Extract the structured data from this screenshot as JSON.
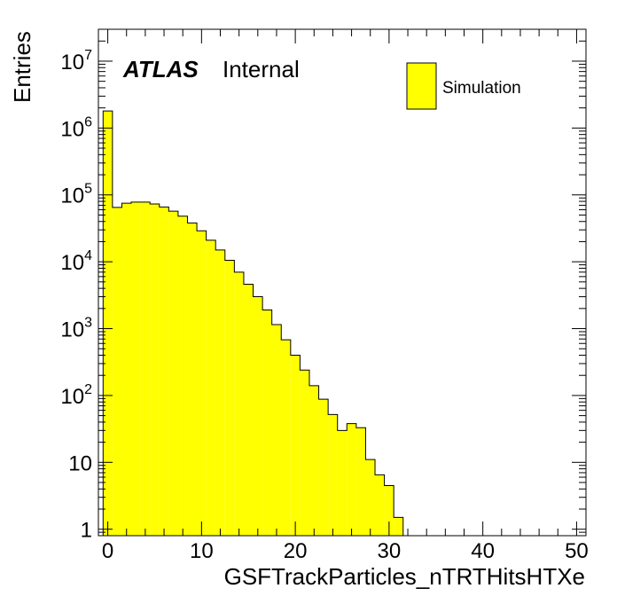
{
  "chart_data": {
    "type": "bar",
    "title": "",
    "xlabel": "GSFTrackParticles_nTRTHitsHTXe",
    "ylabel": "Entries",
    "log_y": true,
    "xlim": [
      -1,
      51
    ],
    "ylim": [
      0.8,
      30000000
    ],
    "grid": false,
    "bin_width": 1,
    "fill_color": "#ffff00",
    "line_color": "#000000",
    "x_ticks": [
      {
        "value": 0,
        "label": "0"
      },
      {
        "value": 10,
        "label": "10"
      },
      {
        "value": 20,
        "label": "20"
      },
      {
        "value": 30,
        "label": "30"
      },
      {
        "value": 40,
        "label": "40"
      },
      {
        "value": 50,
        "label": "50"
      }
    ],
    "y_ticks": [
      {
        "value": 1,
        "base": "1",
        "exp": ""
      },
      {
        "value": 10,
        "base": "10",
        "exp": ""
      },
      {
        "value": 100,
        "base": "10",
        "exp": "2"
      },
      {
        "value": 1000,
        "base": "10",
        "exp": "3"
      },
      {
        "value": 10000,
        "base": "10",
        "exp": "4"
      },
      {
        "value": 100000,
        "base": "10",
        "exp": "5"
      },
      {
        "value": 1000000,
        "base": "10",
        "exp": "6"
      },
      {
        "value": 10000000,
        "base": "10",
        "exp": "7"
      }
    ],
    "series": [
      {
        "name": "Simulation",
        "bin_low_edges": [
          -0.5,
          0.5,
          1.5,
          2.5,
          3.5,
          4.5,
          5.5,
          6.5,
          7.5,
          8.5,
          9.5,
          10.5,
          11.5,
          12.5,
          13.5,
          14.5,
          15.5,
          16.5,
          17.5,
          18.5,
          19.5,
          20.5,
          21.5,
          22.5,
          23.5,
          24.5,
          25.5,
          26.5,
          27.5,
          28.5,
          29.5,
          30.5,
          31.5
        ],
        "values": [
          1800000,
          65000,
          75000,
          78000,
          78000,
          73000,
          66000,
          57000,
          48000,
          38000,
          29000,
          21000,
          15000,
          10500,
          7000,
          4600,
          3000,
          1900,
          1150,
          680,
          400,
          240,
          140,
          88,
          52,
          30,
          38,
          33,
          11,
          6.5,
          4.5,
          1.5,
          0.5
        ]
      }
    ],
    "annotations": {
      "experiment": "ATLAS",
      "status": "Internal"
    },
    "legend": {
      "position": "top-right",
      "entries": [
        "Simulation"
      ]
    }
  }
}
